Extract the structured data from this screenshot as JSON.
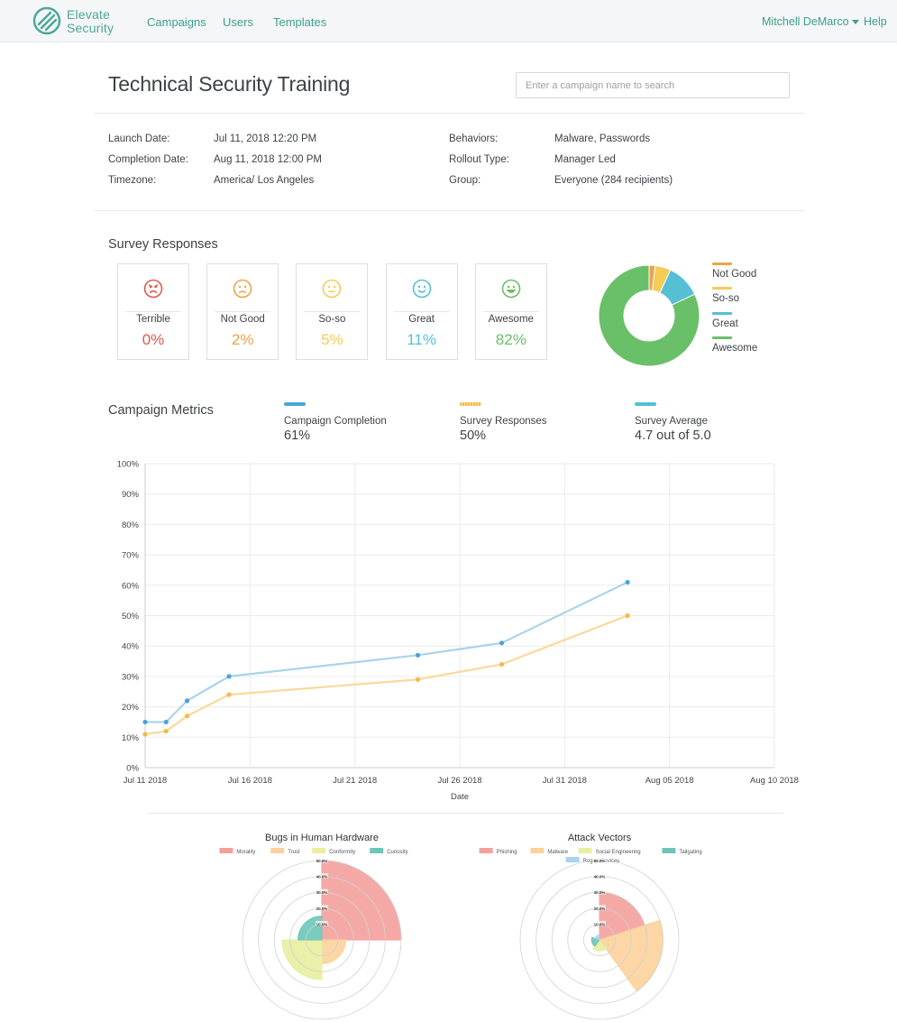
{
  "nav": {
    "brand_line1": "Elevate",
    "brand_line2": "Security",
    "links": [
      "Campaigns",
      "Users",
      "Templates"
    ],
    "user": "Mitchell DeMarco",
    "help": "Help"
  },
  "page": {
    "title": "Technical Security Training",
    "search_placeholder": "Enter a campaign name to search"
  },
  "info": {
    "left": [
      {
        "label": "Launch Date:",
        "value": "Jul 11, 2018 12:20 PM"
      },
      {
        "label": "Completion Date:",
        "value": "Aug 11, 2018 12:00 PM"
      },
      {
        "label": "Timezone:",
        "value": "America/ Los Angeles"
      }
    ],
    "right": [
      {
        "label": "Behaviors:",
        "value": "Malware, Passwords"
      },
      {
        "label": "Rollout Type:",
        "value": "Manager Led"
      },
      {
        "label": "Group:",
        "value": "Everyone (284 recipients)"
      }
    ]
  },
  "survey": {
    "title": "Survey Responses",
    "cards": [
      {
        "label": "Terrible",
        "value": "0%",
        "percent": 0,
        "color": "#e2574c",
        "icon": "terrible-face-icon"
      },
      {
        "label": "Not Good",
        "value": "2%",
        "percent": 2,
        "color": "#f0a24a",
        "icon": "not-good-face-icon"
      },
      {
        "label": "So-so",
        "value": "5%",
        "percent": 5,
        "color": "#f5cc58",
        "icon": "so-so-face-icon"
      },
      {
        "label": "Great",
        "value": "11%",
        "percent": 11,
        "color": "#55bfd4",
        "icon": "great-face-icon"
      },
      {
        "label": "Awesome",
        "value": "82%",
        "percent": 82,
        "color": "#6abf69",
        "icon": "awesome-face-icon"
      }
    ],
    "legend": [
      {
        "label": "Not Good",
        "color": "#f0a24a"
      },
      {
        "label": "So-so",
        "color": "#f5cc58"
      },
      {
        "label": "Great",
        "color": "#55bfd4"
      },
      {
        "label": "Awesome",
        "color": "#6abf69"
      }
    ]
  },
  "metrics": {
    "title": "Campaign Metrics",
    "items": [
      {
        "label": "Campaign Completion",
        "value": "61%",
        "color": "#4aa3d8"
      },
      {
        "label": "Survey Responses",
        "value": "50%",
        "color": "#f5b94a"
      },
      {
        "label": "Survey Average",
        "value": "4.7 out of 5.0",
        "color": "#55bfd4"
      }
    ]
  },
  "chart_data": [
    {
      "type": "line",
      "xlabel": "Date",
      "ylabel": "",
      "x_ticks": [
        "Jul 11 2018",
        "Jul 16 2018",
        "Jul 21 2018",
        "Jul 26 2018",
        "Jul 31 2018",
        "Aug 05 2018",
        "Aug 10 2018"
      ],
      "y_ticks": [
        "0%",
        "10%",
        "20%",
        "30%",
        "40%",
        "50%",
        "60%",
        "70%",
        "80%",
        "90%",
        "100%"
      ],
      "ylim": [
        0,
        100
      ],
      "xlim": [
        "2018-07-11",
        "2018-08-10"
      ],
      "grid": true,
      "series": [
        {
          "color": "#a8d4ea",
          "point_color": "#4aa3d8",
          "x": [
            "2018-07-11",
            "2018-07-12",
            "2018-07-13",
            "2018-07-15",
            "2018-07-24",
            "2018-07-28",
            "2018-08-03"
          ],
          "values": [
            15,
            15,
            22,
            30,
            37,
            41,
            61
          ]
        },
        {
          "color": "#fbd99c",
          "point_color": "#f5b94a",
          "x": [
            "2018-07-11",
            "2018-07-12",
            "2018-07-13",
            "2018-07-15",
            "2018-07-24",
            "2018-07-28",
            "2018-08-03"
          ],
          "values": [
            11,
            12,
            17,
            24,
            29,
            34,
            50
          ]
        }
      ]
    },
    {
      "type": "polarArea",
      "title": "Bugs in Human Hardware",
      "legend": [
        {
          "label": "Morality",
          "color": "#f4a09c"
        },
        {
          "label": "Trust",
          "color": "#fcd29a"
        },
        {
          "label": "Conformity",
          "color": "#e8ee9e"
        },
        {
          "label": "Curiosity",
          "color": "#6cc6b8"
        }
      ],
      "r_ticks": [
        "10.0%",
        "20.0%",
        "30.0%",
        "40.0%",
        "50.0%"
      ],
      "rmax": 50,
      "values": [
        50,
        15,
        25,
        15
      ]
    },
    {
      "type": "polarArea",
      "title": "Attack Vectors",
      "legend": [
        {
          "label": "Phishing",
          "color": "#f4a09c"
        },
        {
          "label": "Malware",
          "color": "#fcd29a"
        },
        {
          "label": "Social Engineering",
          "color": "#e8ee9e"
        },
        {
          "label": "Tailgating",
          "color": "#6cc6b8"
        },
        {
          "label": "Rogue Devices",
          "color": "#a9d3ee"
        }
      ],
      "r_ticks": [
        "10.0%",
        "20.0%",
        "30.0%",
        "40.0%",
        "50.0%"
      ],
      "rmax": 50,
      "values": [
        30,
        40,
        7,
        5,
        3
      ]
    }
  ]
}
